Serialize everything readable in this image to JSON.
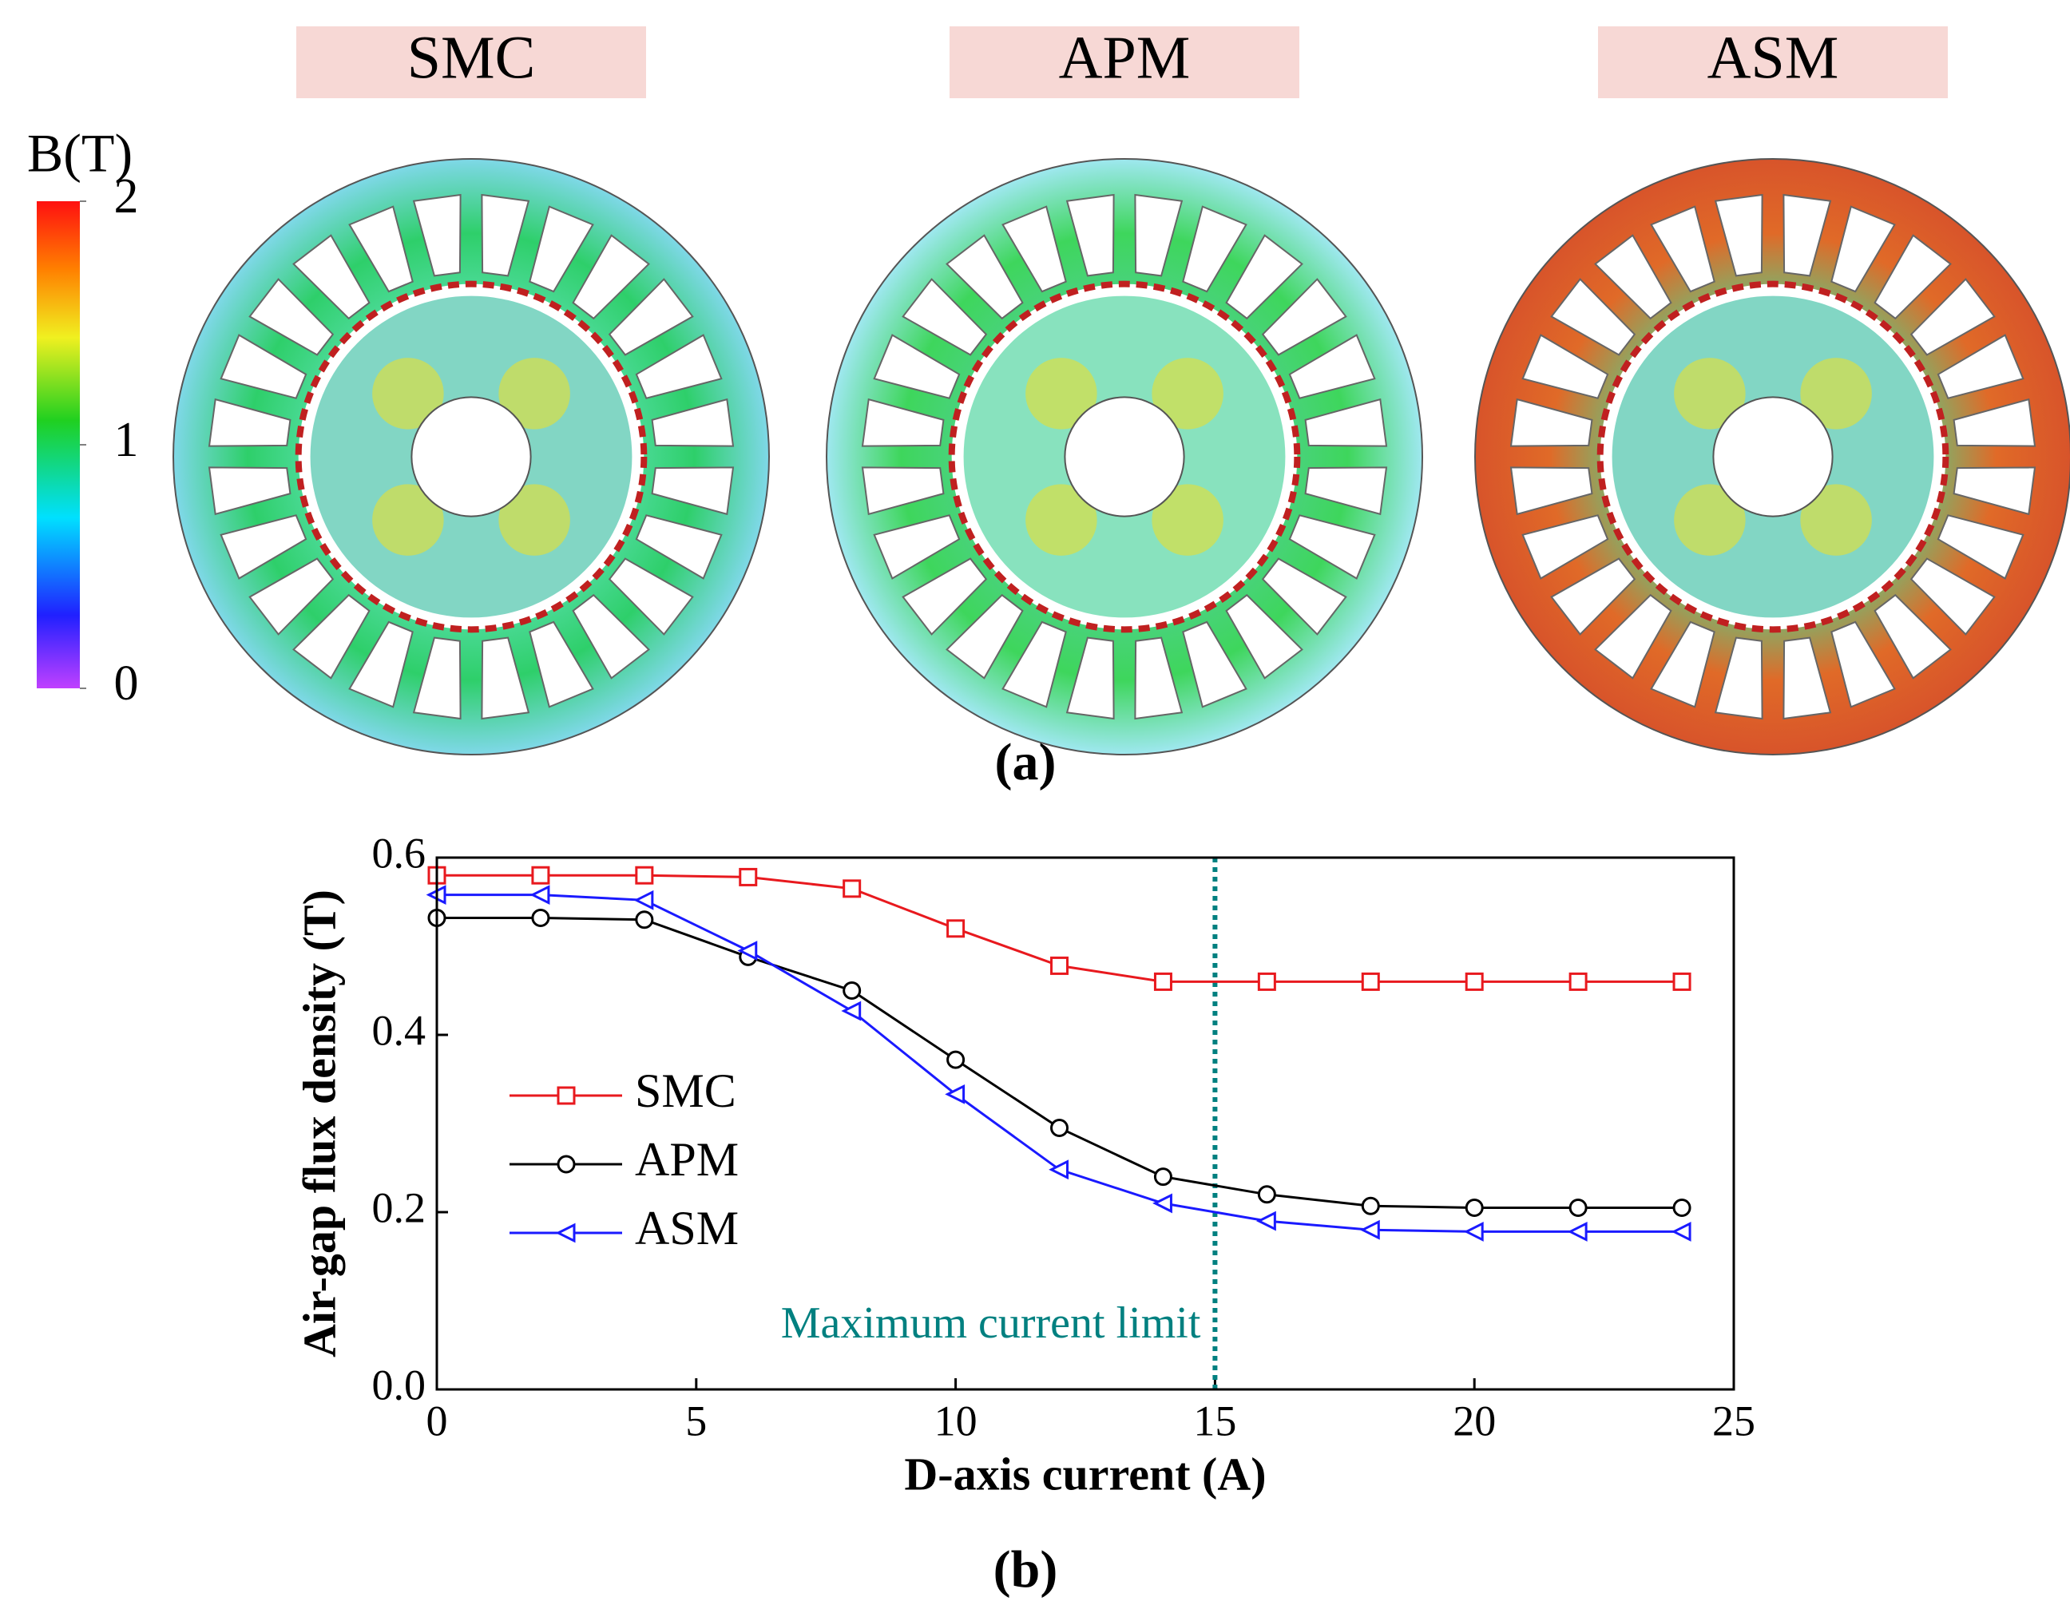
{
  "panel_a": {
    "label": "(a)",
    "titles": [
      "SMC",
      "APM",
      "ASM"
    ],
    "colorbar": {
      "title": "B(T)",
      "lim": [
        0,
        2
      ],
      "ticks": [
        0,
        1,
        2
      ]
    }
  },
  "panel_b_label": "(b)",
  "chart_data": {
    "type": "line",
    "x_label": "D-axis current (A)",
    "y_label": "Air-gap flux density (T)",
    "x": [
      0,
      2,
      4,
      6,
      8,
      10,
      12,
      14,
      16,
      18,
      20,
      22,
      24
    ],
    "series": [
      {
        "name": "SMC",
        "color": "#e8191e",
        "marker": "square",
        "values": [
          0.58,
          0.58,
          0.58,
          0.578,
          0.565,
          0.52,
          0.478,
          0.46,
          0.46,
          0.46,
          0.46,
          0.46,
          0.46
        ]
      },
      {
        "name": "APM",
        "color": "#000000",
        "marker": "circle",
        "values": [
          0.532,
          0.532,
          0.53,
          0.488,
          0.45,
          0.372,
          0.295,
          0.24,
          0.22,
          0.207,
          0.205,
          0.205,
          0.205
        ]
      },
      {
        "name": "ASM",
        "color": "#1a1aff",
        "marker": "triangle-left",
        "values": [
          0.558,
          0.558,
          0.552,
          0.495,
          0.427,
          0.333,
          0.248,
          0.21,
          0.19,
          0.18,
          0.178,
          0.178,
          0.178
        ]
      }
    ],
    "xlim": [
      0,
      25
    ],
    "ylim": [
      0,
      0.6
    ],
    "xticks": [
      0,
      5,
      10,
      15,
      20,
      25
    ],
    "yticks": [
      {
        "value": 0,
        "label": "0.0"
      },
      0.2,
      0.4,
      0.6
    ],
    "vline": {
      "x": 15,
      "label": "Maximum current limit",
      "color": "#008080"
    },
    "legend": "left"
  }
}
